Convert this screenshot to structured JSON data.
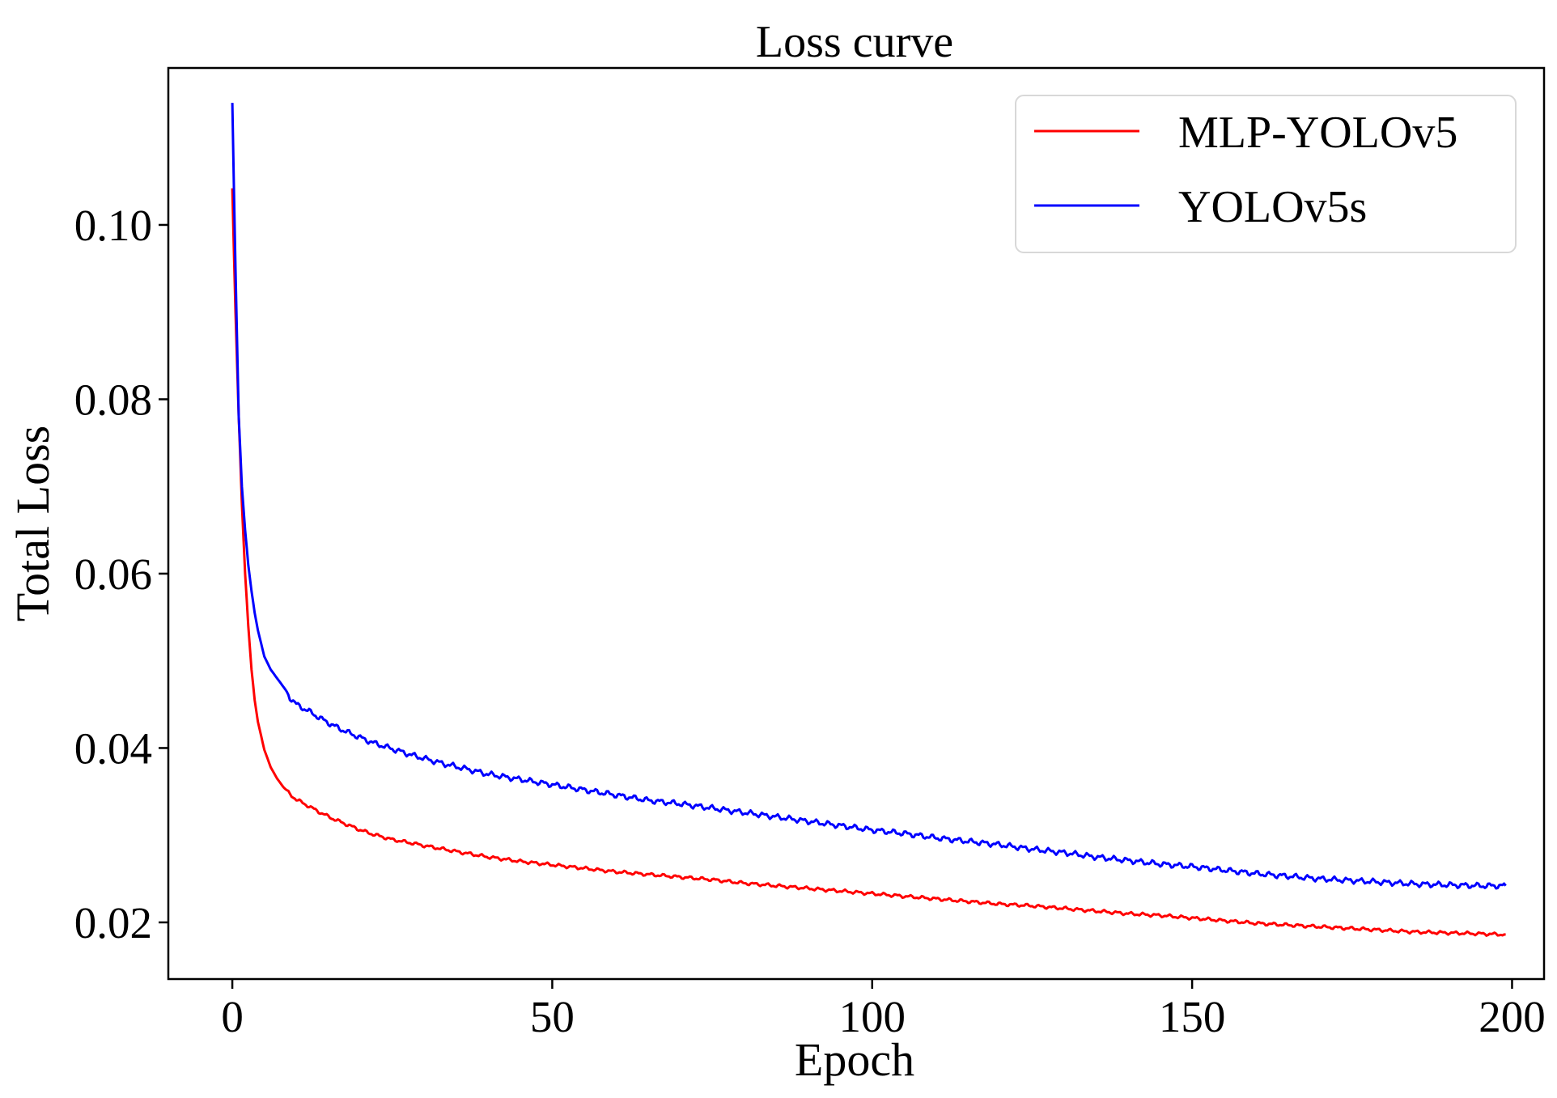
{
  "chart_data": {
    "type": "line",
    "title": "Loss curve",
    "xlabel": "Epoch",
    "ylabel": "Total Loss",
    "xlim": [
      -10,
      205
    ],
    "ylim": [
      0.0135,
      0.118
    ],
    "xticks": [
      0,
      50,
      100,
      150,
      200
    ],
    "xtick_labels": [
      "0",
      "50",
      "100",
      "150",
      "200"
    ],
    "yticks": [
      0.02,
      0.04,
      0.06,
      0.08,
      0.1
    ],
    "ytick_labels": [
      "0.02",
      "0.04",
      "0.06",
      "0.08",
      "0.10"
    ],
    "grid": false,
    "legend_position": "top-right",
    "series": [
      {
        "name": "MLP-YOLOv5",
        "color": "#ff0000",
        "x": [
          0,
          0.5,
          1,
          1.5,
          2,
          2.5,
          3,
          3.5,
          4,
          5,
          6,
          7,
          8,
          9,
          10,
          12,
          14,
          16,
          18,
          20,
          22,
          25,
          28,
          30,
          33,
          36,
          40,
          45,
          50,
          55,
          60,
          65,
          70,
          75,
          80,
          85,
          90,
          95,
          100,
          105,
          110,
          115,
          120,
          125,
          130,
          135,
          140,
          145,
          150,
          155,
          160,
          165,
          170,
          175,
          180,
          185,
          190,
          195,
          199
        ],
        "values": [
          0.1042,
          0.09,
          0.078,
          0.068,
          0.06,
          0.054,
          0.049,
          0.0455,
          0.043,
          0.0398,
          0.0378,
          0.0365,
          0.0355,
          0.0347,
          0.0341,
          0.0333,
          0.0325,
          0.0318,
          0.0312,
          0.0306,
          0.0301,
          0.0295,
          0.0291,
          0.0288,
          0.0284,
          0.028,
          0.0275,
          0.027,
          0.0266,
          0.0262,
          0.0258,
          0.0255,
          0.0252,
          0.0249,
          0.0245,
          0.0242,
          0.0239,
          0.0236,
          0.0233,
          0.023,
          0.0227,
          0.0224,
          0.0221,
          0.0219,
          0.0216,
          0.0213,
          0.021,
          0.0208,
          0.0205,
          0.0202,
          0.0199,
          0.0197,
          0.0195,
          0.0193,
          0.0191,
          0.0189,
          0.0188,
          0.0187,
          0.0186
        ]
      },
      {
        "name": "YOLOv5s",
        "color": "#0000ff",
        "x": [
          0,
          0.5,
          1,
          1.5,
          2,
          2.5,
          3,
          3.5,
          4,
          5,
          6,
          7,
          8,
          9,
          10,
          12,
          14,
          16,
          18,
          20,
          22,
          25,
          28,
          30,
          33,
          36,
          40,
          45,
          50,
          55,
          60,
          65,
          70,
          75,
          80,
          85,
          90,
          95,
          100,
          105,
          110,
          115,
          120,
          125,
          130,
          135,
          140,
          145,
          150,
          155,
          160,
          165,
          170,
          175,
          180,
          185,
          190,
          195,
          199
        ],
        "values": [
          0.114,
          0.095,
          0.078,
          0.07,
          0.065,
          0.061,
          0.058,
          0.0555,
          0.0535,
          0.0505,
          0.049,
          0.048,
          0.047,
          0.0458,
          0.045,
          0.0442,
          0.0433,
          0.0425,
          0.0418,
          0.0412,
          0.0406,
          0.0399,
          0.0392,
          0.0388,
          0.0382,
          0.0377,
          0.037,
          0.0364,
          0.0358,
          0.0352,
          0.0346,
          0.034,
          0.0336,
          0.0331,
          0.0326,
          0.0321,
          0.0316,
          0.0311,
          0.0306,
          0.0302,
          0.0297,
          0.0293,
          0.0289,
          0.0284,
          0.028,
          0.0275,
          0.0271,
          0.0267,
          0.0264,
          0.026,
          0.0256,
          0.0253,
          0.025,
          0.0248,
          0.0246,
          0.0244,
          0.0243,
          0.0242,
          0.0242
        ]
      }
    ]
  }
}
